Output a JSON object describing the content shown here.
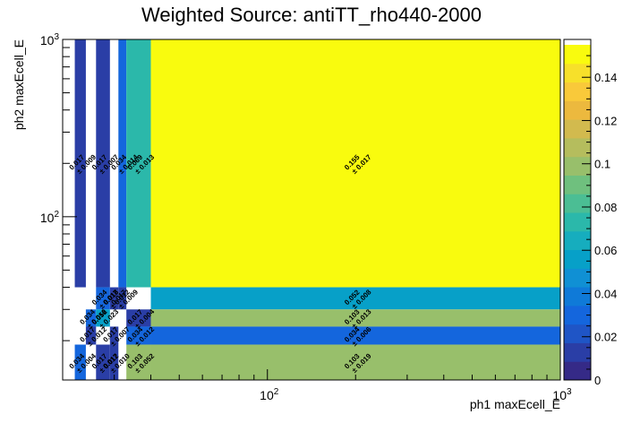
{
  "chart_data": {
    "type": "heatmap",
    "title": "Weighted Source: antiTT_rho440-2000",
    "xlabel": "ph1 maxEcell_E",
    "ylabel": "ph2 maxEcell_E",
    "x_scale": "log",
    "y_scale": "log",
    "xlim": [
      20,
      1000
    ],
    "ylim": [
      12,
      1000
    ],
    "x_ticks": [
      {
        "value": 100,
        "label": "10^2"
      },
      {
        "value": 1000,
        "label": "10^3"
      }
    ],
    "y_ticks": [
      {
        "value": 100,
        "label": "10^2"
      },
      {
        "value": 1000,
        "label": "10^3"
      }
    ],
    "z_range": [
      0,
      0.155
    ],
    "colorbar_ticks": [
      "0",
      "0.02",
      "0.04",
      "0.06",
      "0.08",
      "0.1",
      "0.12",
      "0.14"
    ],
    "cells": [
      {
        "x0": 22,
        "x1": 24,
        "y0": 40,
        "y1": 1000,
        "value": 0.017,
        "error": 0.009
      },
      {
        "x0": 26,
        "x1": 29,
        "y0": 40,
        "y1": 1000,
        "value": 0.017,
        "error": 0.007
      },
      {
        "x0": 31,
        "x1": 33,
        "y0": 40,
        "y1": 1000,
        "value": 0.034,
        "error": 0.014
      },
      {
        "x0": 33,
        "x1": 40,
        "y0": 40,
        "y1": 1000,
        "value": 0.069,
        "error": 0.013
      },
      {
        "x0": 40,
        "x1": 1000,
        "y0": 40,
        "y1": 1000,
        "value": 0.155,
        "error": 0.017
      },
      {
        "x0": 26,
        "x1": 29,
        "y0": 30,
        "y1": 40,
        "value": 0.034,
        "error": 0.018
      },
      {
        "x0": 29,
        "x1": 31,
        "y0": 30,
        "y1": 40,
        "value": 0.017,
        "error": 0.012
      },
      {
        "x0": 31,
        "x1": 33,
        "y0": 30,
        "y1": 40,
        "value": 0.017,
        "error": 0.009
      },
      {
        "x0": 40,
        "x1": 1000,
        "y0": 30,
        "y1": 40,
        "value": 0.052,
        "error": 0.008
      },
      {
        "x0": 24,
        "x1": 26,
        "y0": 24,
        "y1": 30,
        "value": 0.034,
        "error": 0.016
      },
      {
        "x0": 26,
        "x1": 29,
        "y0": 24,
        "y1": 30,
        "value": 0.052,
        "error": 0.023
      },
      {
        "x0": 33,
        "x1": 40,
        "y0": 24,
        "y1": 30,
        "value": 0.017,
        "error": 0.004
      },
      {
        "x0": 40,
        "x1": 1000,
        "y0": 24,
        "y1": 30,
        "value": 0.103,
        "error": 0.013
      },
      {
        "x0": 24,
        "x1": 26,
        "y0": 19,
        "y1": 24,
        "value": 0.017,
        "error": 0.012
      },
      {
        "x0": 29,
        "x1": 31,
        "y0": 19,
        "y1": 24,
        "value": 0.017,
        "error": 0.007
      },
      {
        "x0": 33,
        "x1": 40,
        "y0": 19,
        "y1": 24,
        "value": 0.034,
        "error": 0.012
      },
      {
        "x0": 40,
        "x1": 1000,
        "y0": 19,
        "y1": 24,
        "value": 0.034,
        "error": 0.006
      },
      {
        "x0": 22,
        "x1": 24,
        "y0": 12,
        "y1": 19,
        "value": 0.034,
        "error": 0.004
      },
      {
        "x0": 26,
        "x1": 29,
        "y0": 12,
        "y1": 19,
        "value": 0.017,
        "error": 0.012
      },
      {
        "x0": 29,
        "x1": 31,
        "y0": 12,
        "y1": 19,
        "value": 0.017,
        "error": 0.01
      },
      {
        "x0": 33,
        "x1": 40,
        "y0": 12,
        "y1": 19,
        "value": 0.103,
        "error": 0.052
      },
      {
        "x0": 40,
        "x1": 1000,
        "y0": 12,
        "y1": 19,
        "value": 0.103,
        "error": 0.019
      }
    ],
    "palette": [
      "#352a87",
      "#2a3ea6",
      "#1f55c6",
      "#1466dd",
      "#0f7ad8",
      "#1090d4",
      "#07a0c8",
      "#16adbe",
      "#2bb8aa",
      "#4bbe94",
      "#6fc07e",
      "#98bf6b",
      "#b5bd5d",
      "#d2ba4e",
      "#ecb93e",
      "#f9c93a",
      "#f7e02a",
      "#f9fb0e"
    ]
  }
}
